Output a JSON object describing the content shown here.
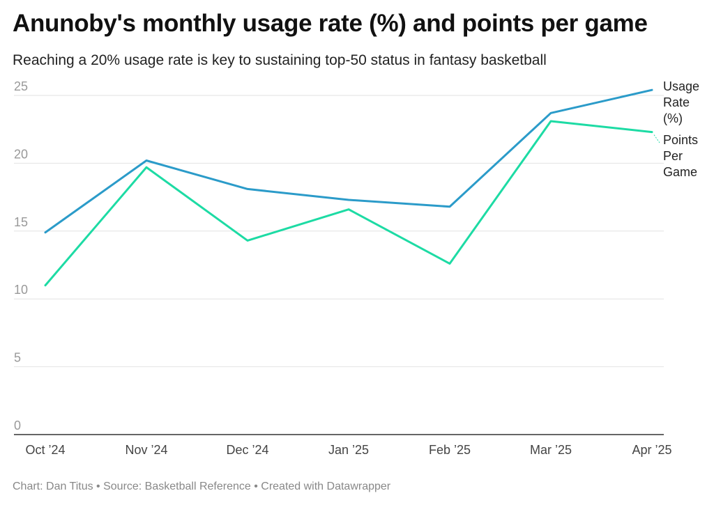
{
  "header": {
    "title": "Anunoby's monthly usage rate (%) and points per game",
    "subtitle": "Reaching a 20% usage rate is key to sustaining top-50 status in fantasy basketball"
  },
  "footer": {
    "credit": "Chart: Dan Titus • Source: Basketball Reference • Created with Datawrapper"
  },
  "chart_data": {
    "type": "line",
    "categories": [
      "Oct ’24",
      "Nov ’24",
      "Dec ’24",
      "Jan ’25",
      "Feb ’25",
      "Mar ’25",
      "Apr ’25"
    ],
    "ylim": [
      0,
      25
    ],
    "yticks": [
      0,
      5,
      10,
      15,
      20,
      25
    ],
    "grid": true,
    "legend": "direct labels at right end",
    "series": [
      {
        "name": "Usage Rate (%)",
        "label_lines": [
          "Usage",
          "Rate",
          "(%)"
        ],
        "color": "#2b9bc9",
        "values": [
          14.9,
          20.2,
          18.1,
          17.3,
          16.8,
          23.7,
          25.4
        ]
      },
      {
        "name": "Points Per Game",
        "label_lines": [
          "Points",
          "Per",
          "Game"
        ],
        "color": "#1ddba4",
        "values": [
          11.0,
          19.7,
          14.3,
          16.6,
          12.6,
          23.1,
          22.3
        ]
      }
    ]
  }
}
